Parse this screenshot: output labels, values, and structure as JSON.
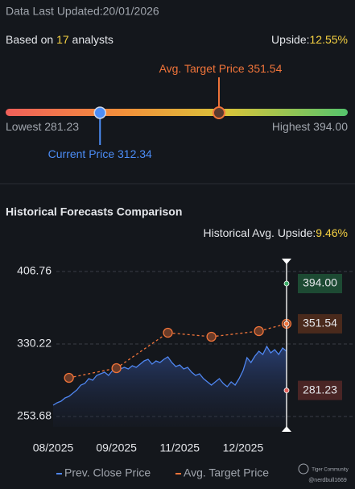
{
  "header": {
    "updated": "Data Last Updated:20/01/2026",
    "based_prefix": "Based on",
    "analysts": "17",
    "based_suffix": "analysts",
    "upside_label": "Upside:",
    "upside": "12.55%"
  },
  "range": {
    "lowest_label": "Lowest",
    "lowest": "281.23",
    "highest_label": "Highest",
    "highest": "394.00",
    "current_label": "Current Price",
    "current": "312.34",
    "target_label": "Avg. Target Price",
    "target": "351.54"
  },
  "history": {
    "upside_label": "Historical Avg. Upside:",
    "upside": "9.46%"
  },
  "watermark": {
    "brand": "Tiger Community",
    "user": "@nerdbull1669"
  },
  "chart_data": {
    "type": "line",
    "title": "Historical Forecasts Comparison",
    "categories": [
      "08/2025",
      null,
      null,
      null,
      null,
      null,
      null,
      null,
      null,
      null,
      null,
      null,
      null,
      null,
      null,
      null,
      "09/2025",
      null,
      null,
      null,
      null,
      null,
      null,
      null,
      null,
      null,
      null,
      null,
      null,
      null,
      null,
      null,
      "11/2025",
      null,
      null,
      null,
      null,
      null,
      null,
      null,
      null,
      null,
      null,
      null,
      null,
      null,
      null,
      null,
      "12/2025",
      null,
      null,
      null,
      null,
      null,
      null,
      null,
      null,
      null,
      null,
      null
    ],
    "series": [
      {
        "name": "Prev. Close Price",
        "color": "#4f86f0",
        "values": [
          265.59,
          268.14,
          269.84,
          273.24,
          274.94,
          278.34,
          281.74,
          286.85,
          288.55,
          293.65,
          291.95,
          297.05,
          298.75,
          300.45,
          297.05,
          302.15,
          300.45,
          303.85,
          305.55,
          303.85,
          307.26,
          305.55,
          308.96,
          312.36,
          314.06,
          308.96,
          312.36,
          310.66,
          314.06,
          316.61,
          310.66,
          306.4,
          308.11,
          303.85,
          305.55,
          300.45,
          297.05,
          298.75,
          293.65,
          290.25,
          286.85,
          290.25,
          293.65,
          288.55,
          285.14,
          290.25,
          286.85,
          293.65,
          302.15,
          315.76,
          310.66,
          317.46,
          322.56,
          319.16,
          327.66,
          320.86,
          324.26,
          319.16,
          325.96,
          322.56
        ]
      },
      {
        "name": "Avg. Target Price",
        "color": "#f0743a",
        "values": [
          null,
          null,
          null,
          null,
          294.5,
          null,
          null,
          null,
          null,
          null,
          null,
          null,
          null,
          null,
          null,
          null,
          304.7,
          null,
          null,
          null,
          null,
          null,
          null,
          null,
          null,
          null,
          null,
          null,
          null,
          342.1,
          null,
          null,
          null,
          null,
          null,
          null,
          null,
          null,
          null,
          null,
          337.9,
          null,
          null,
          null,
          null,
          null,
          null,
          null,
          null,
          null,
          null,
          null,
          343.8,
          null,
          null,
          null,
          null,
          null,
          null,
          351.54
        ]
      }
    ],
    "markers": [
      {
        "value": 394,
        "label": "394.00",
        "color": "#3fae6a",
        "bg": "#1d4a33"
      },
      {
        "value": 351.54,
        "label": "351.54",
        "color": "#f0743a",
        "bg": "#4a2a1c"
      },
      {
        "value": 281.23,
        "label": "281.23",
        "color": "#e0605a",
        "bg": "#4a2525"
      }
    ],
    "ylim": [
      253.68,
      406.76
    ],
    "yticks": [
      253.68,
      330.22,
      406.76
    ],
    "grid": true
  }
}
